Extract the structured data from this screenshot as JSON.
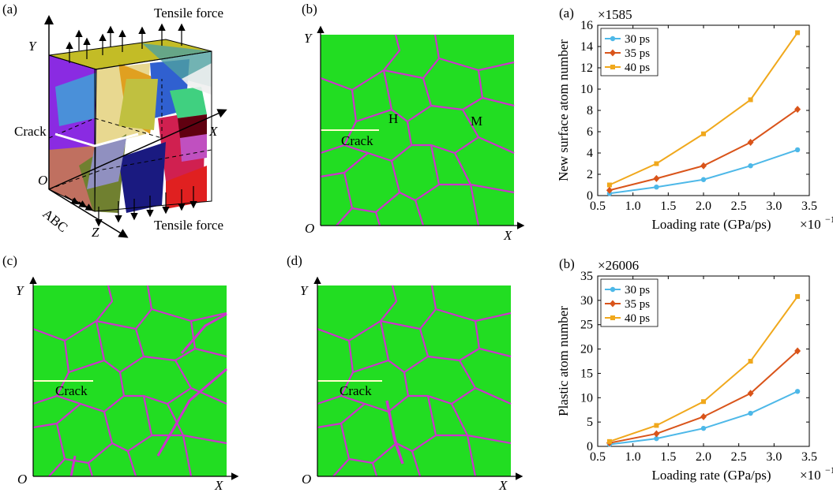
{
  "panels": {
    "a": {
      "label": "(a)",
      "tensile_top": "Tensile force",
      "tensile_bottom": "Tensile force",
      "crack": "Crack",
      "axis_x": "X",
      "axis_y": "Y",
      "axis_z": "Z",
      "origin": "O",
      "abc": "ABC"
    },
    "b": {
      "label": "(b)",
      "crack": "Crack",
      "marker_h": "H",
      "marker_m": "M",
      "axis_x": "X",
      "axis_y": "Y",
      "origin": "O"
    },
    "c": {
      "label": "(c)",
      "crack": "Crack",
      "axis_x": "X",
      "axis_y": "Y",
      "origin": "O"
    },
    "d": {
      "label": "(d)",
      "crack": "Crack",
      "axis_x": "X",
      "axis_y": "Y",
      "origin": "O"
    }
  },
  "colors": {
    "grain_green": "#22dd22",
    "boundary_magenta": "#cc33cc",
    "series_30": "#4db8e8",
    "series_35": "#d9541a",
    "series_40": "#f0a81c"
  },
  "chart_data": [
    {
      "type": "line",
      "panel_label": "(a)",
      "multiplier": "×1585",
      "xlabel": "Loading rate (GPa/ps)",
      "x_exponent": "×10",
      "x_exponent_power": "−1",
      "ylabel": "New surface atom number",
      "xlim": [
        0.5,
        3.5
      ],
      "ylim": [
        0,
        16
      ],
      "xticks": [
        "0.5",
        "1.0",
        "1.5",
        "2.0",
        "2.5",
        "3.0",
        "3.5"
      ],
      "yticks": [
        "0",
        "2",
        "4",
        "6",
        "8",
        "10",
        "12",
        "14",
        "16"
      ],
      "x": [
        0.667,
        1.333,
        2.0,
        2.667,
        3.333
      ],
      "series": [
        {
          "name": "30 ps",
          "marker": "circle",
          "values": [
            0.2,
            0.8,
            1.5,
            2.8,
            4.3
          ]
        },
        {
          "name": "35 ps",
          "marker": "diamond",
          "values": [
            0.5,
            1.6,
            2.8,
            5.0,
            8.1
          ]
        },
        {
          "name": "40 ps",
          "marker": "square",
          "values": [
            1.0,
            3.0,
            5.8,
            9.0,
            15.3
          ]
        }
      ]
    },
    {
      "type": "line",
      "panel_label": "(b)",
      "multiplier": "×26006",
      "xlabel": "Loading rate (GPa/ps)",
      "x_exponent": "×10",
      "x_exponent_power": "−1",
      "ylabel": "Plastic atom number",
      "xlim": [
        0.5,
        3.5
      ],
      "ylim": [
        0,
        35
      ],
      "xticks": [
        "0.5",
        "1.0",
        "1.5",
        "2.0",
        "2.5",
        "3.0",
        "3.5"
      ],
      "yticks": [
        "0",
        "5",
        "10",
        "15",
        "20",
        "25",
        "30",
        "35"
      ],
      "x": [
        0.667,
        1.333,
        2.0,
        2.667,
        3.333
      ],
      "series": [
        {
          "name": "30 ps",
          "marker": "circle",
          "values": [
            0.4,
            1.6,
            3.7,
            6.8,
            11.3
          ]
        },
        {
          "name": "35 ps",
          "marker": "diamond",
          "values": [
            0.7,
            2.6,
            6.1,
            10.9,
            19.6
          ]
        },
        {
          "name": "40 ps",
          "marker": "square",
          "values": [
            1.0,
            4.3,
            9.2,
            17.5,
            30.8
          ]
        }
      ]
    }
  ]
}
